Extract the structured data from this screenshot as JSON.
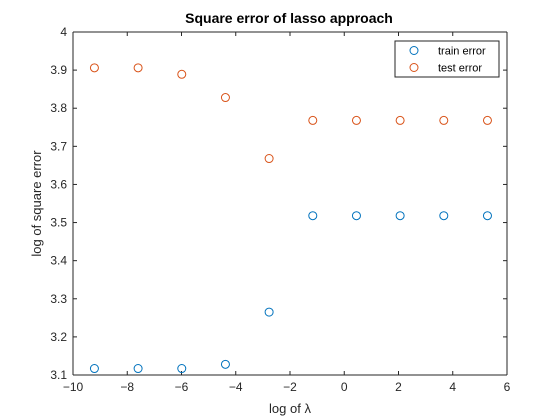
{
  "chart_data": {
    "type": "scatter",
    "title": "Square error of lasso approach",
    "xlabel": "log of λ",
    "ylabel": "log of square error",
    "xlim": [
      -10,
      6
    ],
    "ylim": [
      3.1,
      4
    ],
    "xticks": [
      -10,
      -8,
      -6,
      -4,
      -2,
      0,
      2,
      4,
      6
    ],
    "yticks": [
      3.1,
      3.2,
      3.3,
      3.4,
      3.5,
      3.6,
      3.7,
      3.8,
      3.9,
      4
    ],
    "legend_position": "top-right",
    "grid": false,
    "series": [
      {
        "name": "train error",
        "color": "#0072BD",
        "marker": "circle",
        "x": [
          -9.21,
          -7.6,
          -5.99,
          -4.38,
          -2.77,
          -1.16,
          0.45,
          2.06,
          3.67,
          5.28
        ],
        "y": [
          3.117,
          3.117,
          3.117,
          3.128,
          3.265,
          3.518,
          3.518,
          3.518,
          3.518,
          3.518
        ]
      },
      {
        "name": "test error",
        "color": "#D95319",
        "marker": "circle",
        "x": [
          -9.21,
          -7.6,
          -5.99,
          -4.38,
          -2.77,
          -1.16,
          0.45,
          2.06,
          3.67,
          5.28
        ],
        "y": [
          3.906,
          3.906,
          3.889,
          3.828,
          3.668,
          3.768,
          3.768,
          3.768,
          3.768,
          3.768
        ]
      }
    ]
  }
}
